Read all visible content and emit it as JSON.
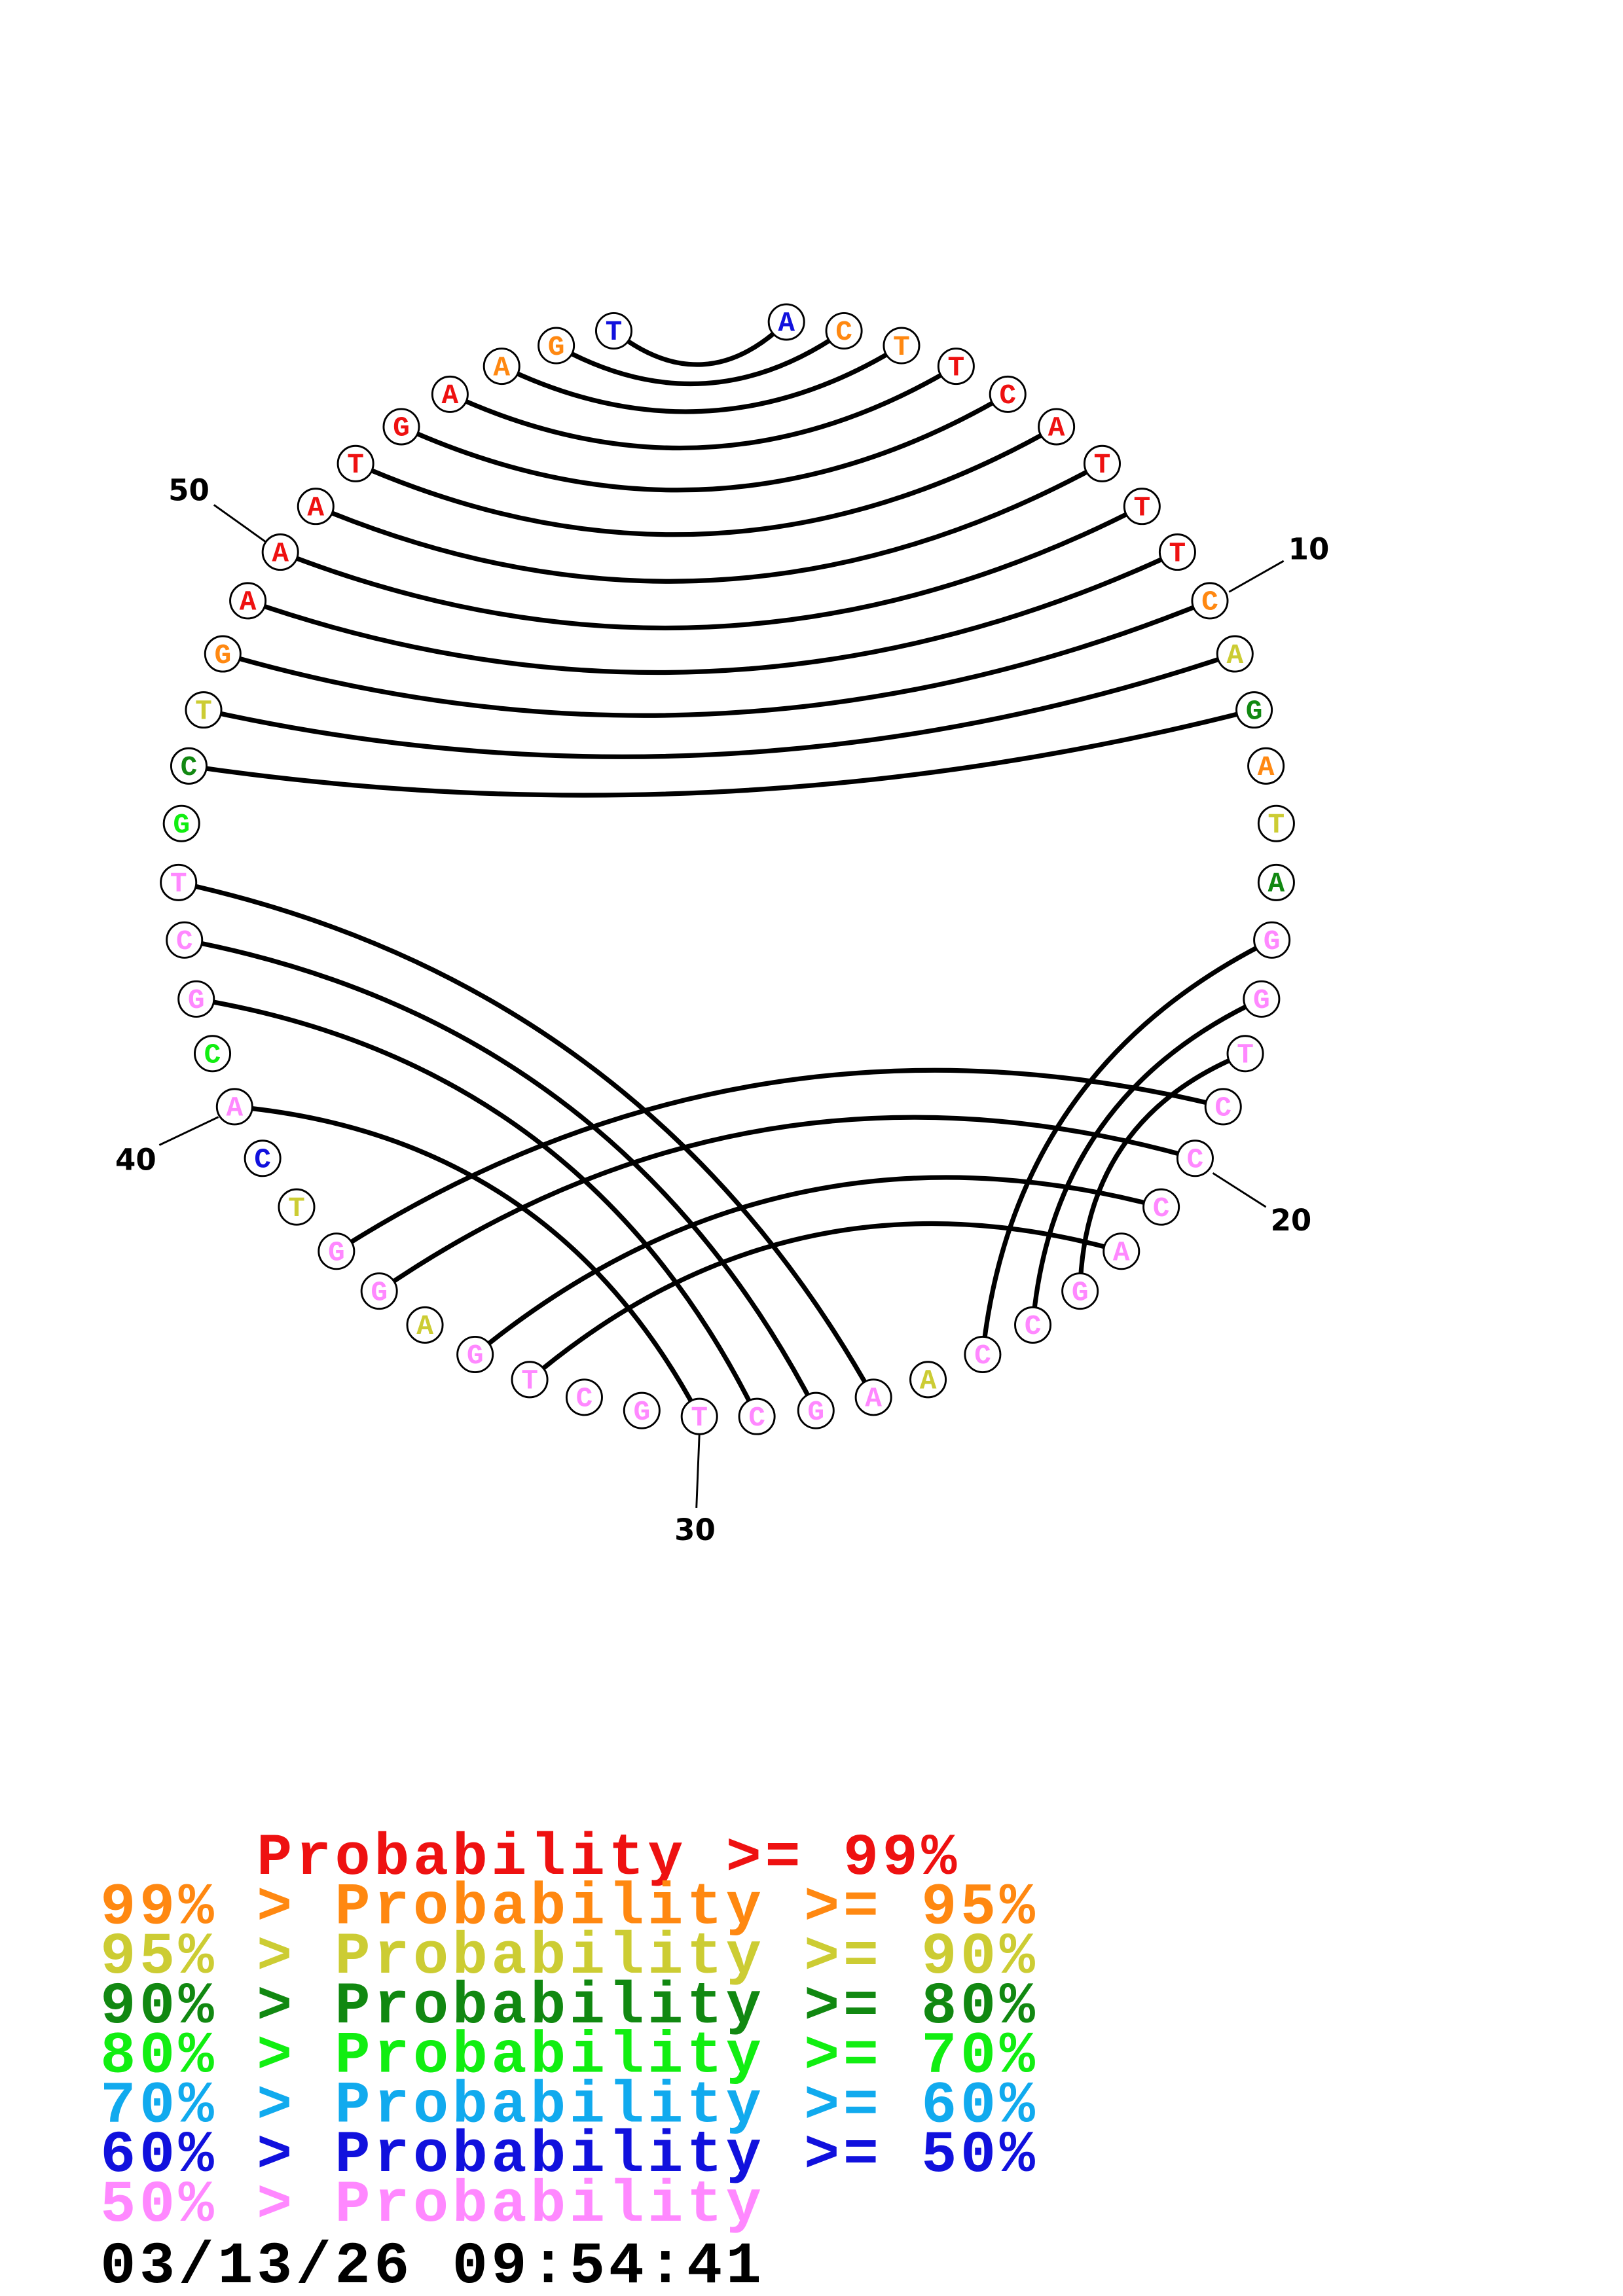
{
  "colors": {
    "red": "#ee1111",
    "orange": "#ff8811",
    "yellow": "#cccc33",
    "darkgreen": "#118811",
    "green": "#11ee11",
    "cyan": "#11aaee",
    "blue": "#1111dd",
    "pink": "#ff88ff"
  },
  "sequence": [
    {
      "n": 1,
      "base": "A",
      "color": "blue"
    },
    {
      "n": 2,
      "base": "C",
      "color": "orange"
    },
    {
      "n": 3,
      "base": "T",
      "color": "orange"
    },
    {
      "n": 4,
      "base": "T",
      "color": "red"
    },
    {
      "n": 5,
      "base": "C",
      "color": "red"
    },
    {
      "n": 6,
      "base": "A",
      "color": "red"
    },
    {
      "n": 7,
      "base": "T",
      "color": "red"
    },
    {
      "n": 8,
      "base": "T",
      "color": "red"
    },
    {
      "n": 9,
      "base": "T",
      "color": "red"
    },
    {
      "n": 10,
      "base": "C",
      "color": "orange"
    },
    {
      "n": 11,
      "base": "A",
      "color": "yellow"
    },
    {
      "n": 12,
      "base": "G",
      "color": "darkgreen"
    },
    {
      "n": 13,
      "base": "A",
      "color": "orange"
    },
    {
      "n": 14,
      "base": "T",
      "color": "yellow"
    },
    {
      "n": 15,
      "base": "A",
      "color": "darkgreen"
    },
    {
      "n": 16,
      "base": "G",
      "color": "pink"
    },
    {
      "n": 17,
      "base": "G",
      "color": "pink"
    },
    {
      "n": 18,
      "base": "T",
      "color": "pink"
    },
    {
      "n": 19,
      "base": "C",
      "color": "pink"
    },
    {
      "n": 20,
      "base": "C",
      "color": "pink"
    },
    {
      "n": 21,
      "base": "C",
      "color": "pink"
    },
    {
      "n": 22,
      "base": "A",
      "color": "pink"
    },
    {
      "n": 23,
      "base": "G",
      "color": "pink"
    },
    {
      "n": 24,
      "base": "C",
      "color": "pink"
    },
    {
      "n": 25,
      "base": "C",
      "color": "pink"
    },
    {
      "n": 26,
      "base": "A",
      "color": "yellow"
    },
    {
      "n": 27,
      "base": "A",
      "color": "pink"
    },
    {
      "n": 28,
      "base": "G",
      "color": "pink"
    },
    {
      "n": 29,
      "base": "C",
      "color": "pink"
    },
    {
      "n": 30,
      "base": "T",
      "color": "pink"
    },
    {
      "n": 31,
      "base": "G",
      "color": "pink"
    },
    {
      "n": 32,
      "base": "C",
      "color": "pink"
    },
    {
      "n": 33,
      "base": "T",
      "color": "pink"
    },
    {
      "n": 34,
      "base": "G",
      "color": "pink"
    },
    {
      "n": 35,
      "base": "A",
      "color": "yellow"
    },
    {
      "n": 36,
      "base": "G",
      "color": "pink"
    },
    {
      "n": 37,
      "base": "G",
      "color": "pink"
    },
    {
      "n": 38,
      "base": "T",
      "color": "yellow"
    },
    {
      "n": 39,
      "base": "C",
      "color": "blue"
    },
    {
      "n": 40,
      "base": "A",
      "color": "pink"
    },
    {
      "n": 41,
      "base": "C",
      "color": "green"
    },
    {
      "n": 42,
      "base": "G",
      "color": "pink"
    },
    {
      "n": 43,
      "base": "C",
      "color": "pink"
    },
    {
      "n": 44,
      "base": "T",
      "color": "pink"
    },
    {
      "n": 45,
      "base": "G",
      "color": "green"
    },
    {
      "n": 46,
      "base": "C",
      "color": "darkgreen"
    },
    {
      "n": 47,
      "base": "T",
      "color": "yellow"
    },
    {
      "n": 48,
      "base": "G",
      "color": "orange"
    },
    {
      "n": 49,
      "base": "A",
      "color": "red"
    },
    {
      "n": 50,
      "base": "A",
      "color": "red"
    },
    {
      "n": 51,
      "base": "A",
      "color": "red"
    },
    {
      "n": 52,
      "base": "T",
      "color": "red"
    },
    {
      "n": 53,
      "base": "G",
      "color": "red"
    },
    {
      "n": 54,
      "base": "A",
      "color": "red"
    },
    {
      "n": 55,
      "base": "A",
      "color": "orange"
    },
    {
      "n": 56,
      "base": "G",
      "color": "orange"
    },
    {
      "n": 57,
      "base": "T",
      "color": "blue"
    }
  ],
  "pairs": [
    [
      57,
      1
    ],
    [
      56,
      2
    ],
    [
      55,
      3
    ],
    [
      54,
      4
    ],
    [
      53,
      5
    ],
    [
      52,
      6
    ],
    [
      51,
      7
    ],
    [
      50,
      8
    ],
    [
      49,
      9
    ],
    [
      48,
      10
    ],
    [
      47,
      11
    ],
    [
      46,
      12
    ],
    [
      44,
      27
    ],
    [
      43,
      28
    ],
    [
      42,
      29
    ],
    [
      40,
      30
    ],
    [
      37,
      19
    ],
    [
      36,
      20
    ],
    [
      34,
      21
    ],
    [
      33,
      22
    ],
    [
      16,
      25
    ],
    [
      17,
      24
    ],
    [
      18,
      23
    ]
  ],
  "position_labels": [
    "10",
    "20",
    "30",
    "40",
    "50"
  ],
  "legend": [
    {
      "text": "    Probability >= 99%",
      "color": "red"
    },
    {
      "text": "99% > Probability >= 95%",
      "color": "orange"
    },
    {
      "text": "95% > Probability >= 90%",
      "color": "yellow"
    },
    {
      "text": "90% > Probability >= 80%",
      "color": "darkgreen"
    },
    {
      "text": "80% > Probability >= 70%",
      "color": "green"
    },
    {
      "text": "70% > Probability >= 60%",
      "color": "cyan"
    },
    {
      "text": "60% > Probability >= 50%",
      "color": "blue"
    },
    {
      "text": "50% > Probability",
      "color": "pink"
    }
  ],
  "timestamp": "03/13/26 09:54:41"
}
